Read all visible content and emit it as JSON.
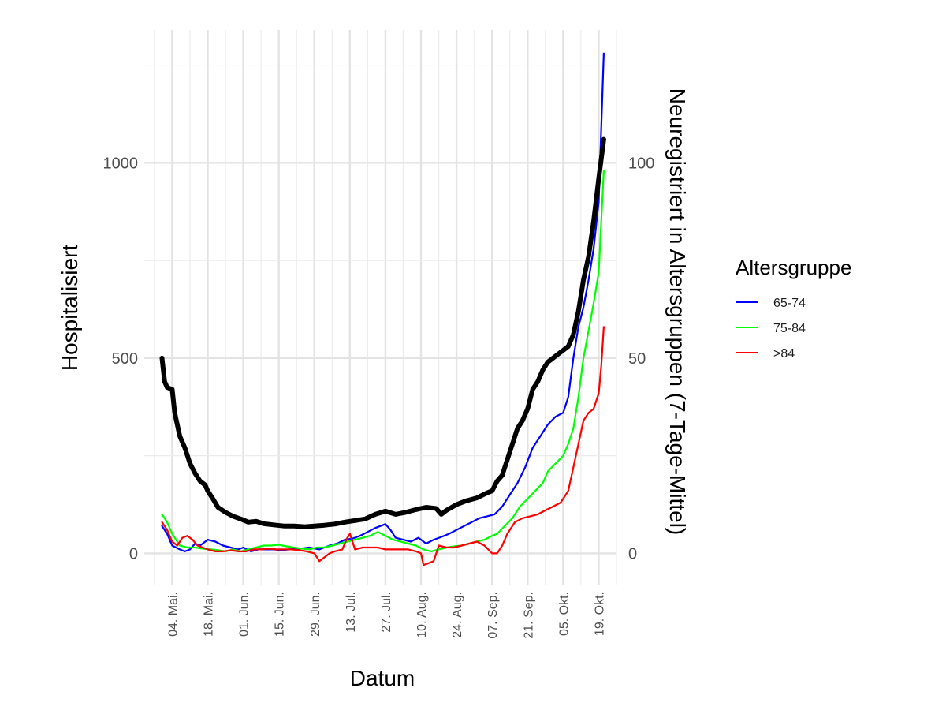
{
  "chart_data": {
    "type": "line",
    "xlabel": "Datum",
    "ylabel_left": "Hospitalisiert",
    "ylabel_right": "Neuregistriert in Altersgruppen (7-Tage-Mittel)",
    "x_tick_labels": [
      "04. Mai.",
      "18. Mai.",
      "01. Jun.",
      "15. Jun.",
      "29. Jun.",
      "13. Jul.",
      "27. Jul.",
      "10. Aug.",
      "24. Aug.",
      "07. Sep.",
      "21. Sep.",
      "05. Okt.",
      "19. Okt."
    ],
    "x_tick_days": [
      0,
      14,
      28,
      42,
      56,
      70,
      84,
      98,
      112,
      126,
      140,
      154,
      168
    ],
    "x_day_origin": "04. Mai.",
    "xlim_days": [
      -11,
      175
    ],
    "ylim_left": [
      -80,
      1340
    ],
    "ylim_right": [
      -8,
      134
    ],
    "y_left_ticks": [
      0,
      500,
      1000
    ],
    "y_right_ticks": [
      0,
      50,
      100
    ],
    "legend": {
      "title": "Altersgruppe",
      "position": "right",
      "entries": [
        {
          "label": "65-74",
          "color": "#0000ff"
        },
        {
          "label": "75-84",
          "color": "#00ff00"
        },
        {
          "label": ">84",
          "color": "#ff0000"
        }
      ]
    },
    "series": [
      {
        "name": "Hospitalisiert",
        "axis": "left",
        "color": "#000000",
        "points": [
          [
            -4,
            500
          ],
          [
            -3,
            440
          ],
          [
            -2,
            425
          ],
          [
            0,
            420
          ],
          [
            1,
            360
          ],
          [
            3,
            300
          ],
          [
            5,
            270
          ],
          [
            7,
            230
          ],
          [
            9,
            205
          ],
          [
            11,
            185
          ],
          [
            13,
            175
          ],
          [
            14,
            160
          ],
          [
            16,
            140
          ],
          [
            18,
            118
          ],
          [
            21,
            105
          ],
          [
            24,
            95
          ],
          [
            27,
            88
          ],
          [
            30,
            80
          ],
          [
            33,
            82
          ],
          [
            36,
            76
          ],
          [
            40,
            73
          ],
          [
            44,
            70
          ],
          [
            48,
            70
          ],
          [
            52,
            68
          ],
          [
            56,
            70
          ],
          [
            60,
            72
          ],
          [
            64,
            75
          ],
          [
            68,
            80
          ],
          [
            72,
            84
          ],
          [
            76,
            88
          ],
          [
            80,
            100
          ],
          [
            84,
            108
          ],
          [
            88,
            100
          ],
          [
            92,
            105
          ],
          [
            96,
            112
          ],
          [
            100,
            118
          ],
          [
            104,
            115
          ],
          [
            106,
            100
          ],
          [
            108,
            110
          ],
          [
            112,
            125
          ],
          [
            116,
            135
          ],
          [
            120,
            142
          ],
          [
            124,
            155
          ],
          [
            126,
            160
          ],
          [
            128,
            185
          ],
          [
            130,
            200
          ],
          [
            132,
            240
          ],
          [
            134,
            280
          ],
          [
            136,
            320
          ],
          [
            138,
            340
          ],
          [
            140,
            370
          ],
          [
            142,
            420
          ],
          [
            144,
            440
          ],
          [
            146,
            470
          ],
          [
            148,
            490
          ],
          [
            150,
            500
          ],
          [
            152,
            510
          ],
          [
            154,
            520
          ],
          [
            156,
            530
          ],
          [
            158,
            560
          ],
          [
            160,
            620
          ],
          [
            162,
            700
          ],
          [
            164,
            760
          ],
          [
            166,
            850
          ],
          [
            168,
            960
          ],
          [
            170,
            1060
          ]
        ]
      },
      {
        "name": "65-74",
        "axis": "right",
        "color": "#0000ff",
        "points": [
          [
            -4,
            7
          ],
          [
            -2,
            5
          ],
          [
            0,
            2
          ],
          [
            3,
            1
          ],
          [
            5,
            0.5
          ],
          [
            7,
            1
          ],
          [
            9,
            2.5
          ],
          [
            11,
            2
          ],
          [
            14,
            3.5
          ],
          [
            17,
            3
          ],
          [
            20,
            2
          ],
          [
            23,
            1.5
          ],
          [
            26,
            1
          ],
          [
            28,
            1.5
          ],
          [
            31,
            0.5
          ],
          [
            34,
            1
          ],
          [
            37,
            1
          ],
          [
            40,
            1
          ],
          [
            43,
            0.8
          ],
          [
            46,
            1
          ],
          [
            50,
            1.2
          ],
          [
            54,
            1.5
          ],
          [
            58,
            1
          ],
          [
            62,
            2
          ],
          [
            65,
            2.5
          ],
          [
            68,
            3.5
          ],
          [
            71,
            3.8
          ],
          [
            74,
            4.5
          ],
          [
            77,
            5.5
          ],
          [
            80,
            6.5
          ],
          [
            84,
            7.5
          ],
          [
            86,
            6
          ],
          [
            88,
            4
          ],
          [
            91,
            3.5
          ],
          [
            94,
            3
          ],
          [
            97,
            4
          ],
          [
            100,
            2.5
          ],
          [
            103,
            3.5
          ],
          [
            106,
            4.2
          ],
          [
            109,
            5
          ],
          [
            112,
            6
          ],
          [
            115,
            7
          ],
          [
            118,
            8
          ],
          [
            121,
            9
          ],
          [
            124,
            9.5
          ],
          [
            127,
            10
          ],
          [
            130,
            12
          ],
          [
            133,
            15
          ],
          [
            136,
            18
          ],
          [
            139,
            22
          ],
          [
            142,
            27
          ],
          [
            145,
            30
          ],
          [
            148,
            33
          ],
          [
            151,
            35
          ],
          [
            154,
            36
          ],
          [
            156,
            40
          ],
          [
            158,
            50
          ],
          [
            160,
            58
          ],
          [
            162,
            63
          ],
          [
            164,
            70
          ],
          [
            166,
            78
          ],
          [
            168,
            90
          ],
          [
            170,
            128
          ]
        ]
      },
      {
        "name": "75-84",
        "axis": "right",
        "color": "#00ff00",
        "points": [
          [
            -4,
            10
          ],
          [
            -2,
            8
          ],
          [
            0,
            5
          ],
          [
            3,
            2
          ],
          [
            6,
            1.5
          ],
          [
            9,
            1.5
          ],
          [
            12,
            1.2
          ],
          [
            15,
            1
          ],
          [
            18,
            0.8
          ],
          [
            21,
            0.5
          ],
          [
            24,
            1
          ],
          [
            27,
            0.5
          ],
          [
            30,
            1
          ],
          [
            33,
            1.5
          ],
          [
            36,
            2
          ],
          [
            39,
            2
          ],
          [
            42,
            2.2
          ],
          [
            45,
            1.8
          ],
          [
            48,
            1.5
          ],
          [
            51,
            1.2
          ],
          [
            54,
            1
          ],
          [
            57,
            1.5
          ],
          [
            60,
            1.5
          ],
          [
            63,
            2
          ],
          [
            66,
            2.5
          ],
          [
            69,
            3
          ],
          [
            72,
            3.5
          ],
          [
            75,
            4
          ],
          [
            78,
            4.5
          ],
          [
            81,
            5.5
          ],
          [
            84,
            4.5
          ],
          [
            87,
            3.5
          ],
          [
            90,
            3
          ],
          [
            93,
            2.5
          ],
          [
            96,
            2
          ],
          [
            99,
            1
          ],
          [
            102,
            0.5
          ],
          [
            105,
            1
          ],
          [
            108,
            1.5
          ],
          [
            111,
            1.8
          ],
          [
            114,
            2
          ],
          [
            117,
            2.5
          ],
          [
            120,
            3
          ],
          [
            123,
            3.5
          ],
          [
            126,
            4.5
          ],
          [
            128,
            5
          ],
          [
            131,
            7
          ],
          [
            134,
            9
          ],
          [
            137,
            12
          ],
          [
            140,
            14
          ],
          [
            143,
            16
          ],
          [
            146,
            18
          ],
          [
            148,
            21
          ],
          [
            151,
            23
          ],
          [
            154,
            25
          ],
          [
            156,
            28
          ],
          [
            158,
            32
          ],
          [
            160,
            40
          ],
          [
            162,
            50
          ],
          [
            164,
            57
          ],
          [
            166,
            64
          ],
          [
            168,
            72
          ],
          [
            170,
            98
          ]
        ]
      },
      {
        "name": ">84",
        "axis": "right",
        "color": "#ff0000",
        "points": [
          [
            -4,
            8
          ],
          [
            -2,
            6
          ],
          [
            0,
            3
          ],
          [
            2,
            2
          ],
          [
            4,
            4
          ],
          [
            6,
            4.5
          ],
          [
            8,
            3.5
          ],
          [
            10,
            2
          ],
          [
            12,
            1.5
          ],
          [
            14,
            1
          ],
          [
            17,
            0.5
          ],
          [
            20,
            0.5
          ],
          [
            23,
            0.8
          ],
          [
            26,
            0.5
          ],
          [
            29,
            0.5
          ],
          [
            32,
            1
          ],
          [
            35,
            1
          ],
          [
            38,
            1.2
          ],
          [
            41,
            1
          ],
          [
            44,
            1
          ],
          [
            47,
            1
          ],
          [
            50,
            0.8
          ],
          [
            53,
            0.5
          ],
          [
            56,
            0
          ],
          [
            58,
            -2
          ],
          [
            60,
            -1
          ],
          [
            62,
            0
          ],
          [
            64,
            0.5
          ],
          [
            67,
            1
          ],
          [
            69,
            4
          ],
          [
            70,
            5
          ],
          [
            72,
            1
          ],
          [
            75,
            1.5
          ],
          [
            78,
            1.5
          ],
          [
            81,
            1.5
          ],
          [
            84,
            1
          ],
          [
            87,
            1
          ],
          [
            90,
            1
          ],
          [
            93,
            1
          ],
          [
            96,
            0.5
          ],
          [
            98,
            0
          ],
          [
            99,
            -3
          ],
          [
            101,
            -2.5
          ],
          [
            103,
            -2
          ],
          [
            105,
            2
          ],
          [
            108,
            1.5
          ],
          [
            111,
            1.5
          ],
          [
            114,
            2
          ],
          [
            117,
            2.5
          ],
          [
            120,
            3
          ],
          [
            123,
            2
          ],
          [
            126,
            0
          ],
          [
            128,
            0
          ],
          [
            130,
            2
          ],
          [
            132,
            5
          ],
          [
            135,
            8
          ],
          [
            138,
            9
          ],
          [
            141,
            9.5
          ],
          [
            144,
            10
          ],
          [
            147,
            11
          ],
          [
            150,
            12
          ],
          [
            153,
            13
          ],
          [
            156,
            16
          ],
          [
            158,
            22
          ],
          [
            160,
            28
          ],
          [
            162,
            34
          ],
          [
            164,
            36
          ],
          [
            166,
            37
          ],
          [
            168,
            41
          ],
          [
            169,
            48
          ],
          [
            170,
            58
          ]
        ]
      }
    ]
  }
}
